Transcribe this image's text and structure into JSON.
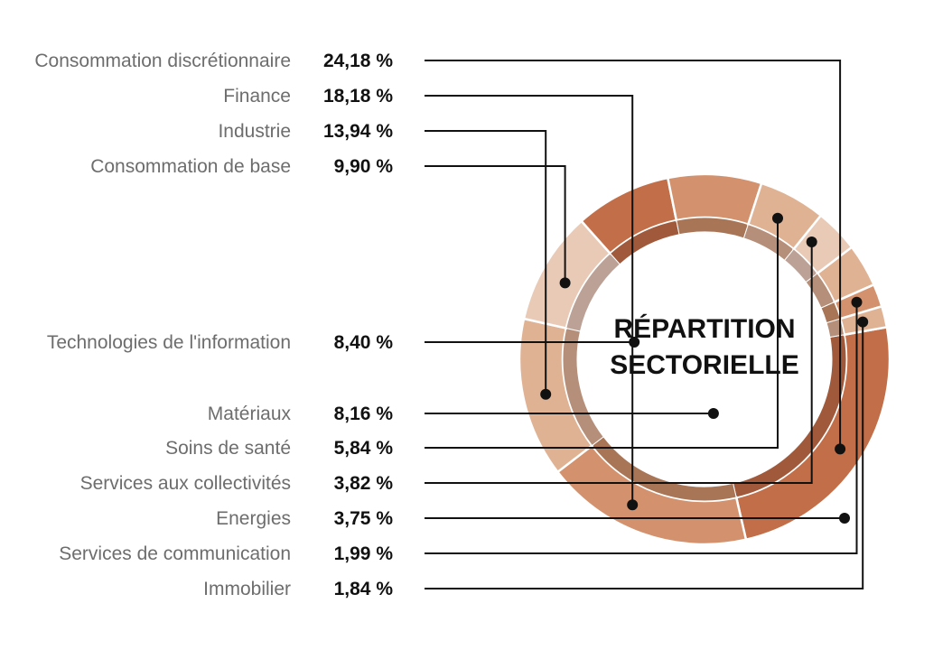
{
  "chart_data": {
    "type": "pie",
    "title": "RÉPARTITION SECTORIELLE",
    "categories": [
      "Consommation discrétionnaire",
      "Finance",
      "Industrie",
      "Consommation de base",
      "Technologies de l'information",
      "Matériaux",
      "Soins de santé",
      "Services aux collectivités",
      "Energies",
      "Services de communication",
      "Immobilier"
    ],
    "values": [
      24.18,
      18.18,
      13.94,
      9.9,
      8.4,
      8.16,
      5.84,
      3.82,
      3.75,
      1.99,
      1.84
    ],
    "value_labels": [
      "24,18 %",
      "18,18 %",
      "13,94 %",
      "9,90 %",
      "8,40 %",
      "8,16 %",
      "5,84 %",
      "3,82 %",
      "3,75 %",
      "1,99 %",
      "1,84 %"
    ],
    "colors": [
      "#c26e48",
      "#d3926d",
      "#e0b294",
      "#e9cab6",
      "#c26e48",
      "#d3926d",
      "#e0b294",
      "#e9cab6",
      "#e0b294",
      "#d3926d",
      "#e0b294"
    ],
    "inner_ring_colors": [
      "#a05a3b",
      "#a87557",
      "#b58f7a",
      "#bca196",
      "#a05a3b",
      "#a87557",
      "#b58f7a",
      "#bca196",
      "#b58f7a",
      "#a87557",
      "#b58f7a"
    ],
    "legend": "left"
  }
}
